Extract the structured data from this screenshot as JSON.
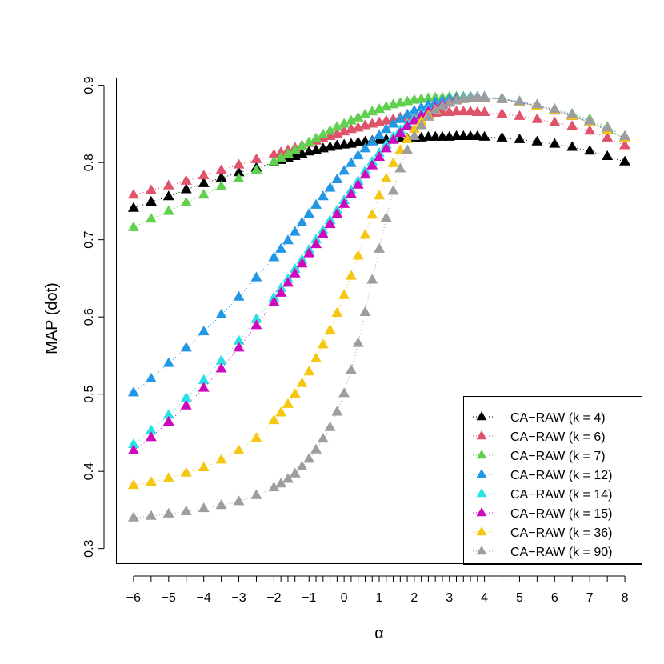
{
  "chart_data": {
    "type": "line",
    "title": "",
    "xlabel": "α",
    "ylabel": "MAP (dot)",
    "xlim": [
      -6.5,
      8.5
    ],
    "ylim": [
      0.28,
      0.91
    ],
    "grid": false,
    "legend_position": "bottom-right",
    "marker": "filled-triangle",
    "line_style": "dotted",
    "x_ticks": [
      -6,
      -5,
      -4,
      -3,
      -2,
      -1,
      0,
      1,
      2,
      3,
      4,
      5,
      6,
      7,
      8
    ],
    "x_tick_labels": [
      "−6",
      "−5",
      "−4",
      "−3",
      "−2",
      "−1",
      "0",
      "1",
      "2",
      "3",
      "4",
      "5",
      "6",
      "7",
      "8"
    ],
    "y_ticks": [
      0.3,
      0.4,
      0.5,
      0.6,
      0.7,
      0.8,
      0.9
    ],
    "y_tick_labels": [
      "0.3",
      "0.4",
      "0.5",
      "0.6",
      "0.7",
      "0.8",
      "0.9"
    ],
    "x": [
      -6,
      -5.5,
      -5,
      -4.5,
      -4,
      -3.5,
      -3,
      -2.5,
      -2,
      -1.8,
      -1.6,
      -1.4,
      -1.2,
      -1,
      -0.8,
      -0.6,
      -0.4,
      -0.2,
      0,
      0.2,
      0.4,
      0.6,
      0.8,
      1,
      1.2,
      1.4,
      1.6,
      1.8,
      2,
      2.2,
      2.4,
      2.6,
      2.8,
      3,
      3.2,
      3.4,
      3.6,
      3.8,
      4,
      4.5,
      5,
      5.5,
      6,
      6.5,
      7,
      7.5,
      8
    ],
    "series": [
      {
        "name": "CA−RAW (k = 4)",
        "color": "#000000",
        "values": [
          0.741,
          0.749,
          0.756,
          0.765,
          0.773,
          0.78,
          0.787,
          0.793,
          0.8,
          0.803,
          0.806,
          0.808,
          0.811,
          0.814,
          0.816,
          0.818,
          0.82,
          0.822,
          0.823,
          0.824,
          0.826,
          0.827,
          0.828,
          0.829,
          0.83,
          0.83,
          0.831,
          0.831,
          0.832,
          0.832,
          0.833,
          0.833,
          0.833,
          0.833,
          0.834,
          0.834,
          0.834,
          0.834,
          0.833,
          0.832,
          0.83,
          0.827,
          0.824,
          0.82,
          0.815,
          0.808,
          0.801
        ]
      },
      {
        "name": "CA−RAW (k = 6)",
        "color": "#DF536B",
        "values": [
          0.758,
          0.764,
          0.77,
          0.776,
          0.783,
          0.79,
          0.797,
          0.804,
          0.81,
          0.813,
          0.816,
          0.819,
          0.822,
          0.825,
          0.828,
          0.831,
          0.834,
          0.837,
          0.84,
          0.843,
          0.845,
          0.848,
          0.85,
          0.852,
          0.854,
          0.856,
          0.858,
          0.859,
          0.86,
          0.862,
          0.863,
          0.864,
          0.865,
          0.865,
          0.866,
          0.866,
          0.866,
          0.865,
          0.865,
          0.863,
          0.86,
          0.856,
          0.852,
          0.847,
          0.841,
          0.832,
          0.822
        ]
      },
      {
        "name": "CA−RAW (k = 7)",
        "color": "#61D04F",
        "values": [
          0.716,
          0.727,
          0.737,
          0.748,
          0.758,
          0.769,
          0.779,
          0.79,
          0.801,
          0.806,
          0.811,
          0.816,
          0.821,
          0.826,
          0.831,
          0.836,
          0.841,
          0.846,
          0.85,
          0.854,
          0.858,
          0.862,
          0.866,
          0.869,
          0.872,
          0.875,
          0.877,
          0.879,
          0.881,
          0.882,
          0.883,
          0.884,
          0.884,
          0.885,
          0.885,
          0.885,
          0.885,
          0.884,
          0.884,
          0.882,
          0.878,
          0.874,
          0.869,
          0.863,
          0.856,
          0.846,
          0.834
        ]
      },
      {
        "name": "CA−RAW (k = 12)",
        "color": "#2297E6",
        "values": [
          0.502,
          0.52,
          0.54,
          0.56,
          0.581,
          0.603,
          0.626,
          0.651,
          0.677,
          0.688,
          0.699,
          0.71,
          0.722,
          0.733,
          0.745,
          0.756,
          0.767,
          0.778,
          0.789,
          0.799,
          0.809,
          0.818,
          0.827,
          0.835,
          0.843,
          0.85,
          0.856,
          0.862,
          0.867,
          0.871,
          0.875,
          0.878,
          0.88,
          0.882,
          0.883,
          0.884,
          0.885,
          0.885,
          0.885,
          0.883,
          0.879,
          0.874,
          0.868,
          0.861,
          0.853,
          0.843,
          0.832
        ]
      },
      {
        "name": "CA−RAW (k = 14)",
        "color": "#28E2E5",
        "values": [
          0.435,
          0.453,
          0.473,
          0.495,
          0.518,
          0.543,
          0.569,
          0.597,
          0.625,
          0.637,
          0.649,
          0.662,
          0.674,
          0.687,
          0.7,
          0.712,
          0.725,
          0.738,
          0.751,
          0.764,
          0.776,
          0.789,
          0.801,
          0.812,
          0.823,
          0.833,
          0.842,
          0.85,
          0.857,
          0.863,
          0.868,
          0.872,
          0.876,
          0.879,
          0.881,
          0.883,
          0.884,
          0.884,
          0.884,
          0.882,
          0.878,
          0.873,
          0.867,
          0.86,
          0.852,
          0.842,
          0.831
        ]
      },
      {
        "name": "CA−RAW (k = 15)",
        "color": "#CD0BBC",
        "values": [
          0.427,
          0.444,
          0.464,
          0.485,
          0.508,
          0.533,
          0.56,
          0.589,
          0.619,
          0.631,
          0.644,
          0.656,
          0.669,
          0.682,
          0.694,
          0.707,
          0.72,
          0.733,
          0.746,
          0.759,
          0.771,
          0.784,
          0.796,
          0.807,
          0.818,
          0.829,
          0.838,
          0.847,
          0.854,
          0.861,
          0.866,
          0.871,
          0.875,
          0.878,
          0.881,
          0.882,
          0.883,
          0.884,
          0.884,
          0.882,
          0.878,
          0.873,
          0.867,
          0.86,
          0.852,
          0.842,
          0.831
        ]
      },
      {
        "name": "CA−RAW (k = 36)",
        "color": "#F5C710",
        "values": [
          0.382,
          0.386,
          0.391,
          0.398,
          0.405,
          0.415,
          0.427,
          0.443,
          0.466,
          0.476,
          0.487,
          0.5,
          0.514,
          0.529,
          0.546,
          0.564,
          0.583,
          0.605,
          0.628,
          0.653,
          0.679,
          0.706,
          0.732,
          0.757,
          0.779,
          0.799,
          0.816,
          0.83,
          0.843,
          0.853,
          0.861,
          0.868,
          0.873,
          0.877,
          0.88,
          0.882,
          0.883,
          0.884,
          0.884,
          0.882,
          0.878,
          0.873,
          0.867,
          0.86,
          0.852,
          0.842,
          0.831
        ]
      },
      {
        "name": "CA−RAW (k = 90)",
        "color": "#9E9E9E",
        "values": [
          0.34,
          0.342,
          0.345,
          0.348,
          0.352,
          0.356,
          0.361,
          0.369,
          0.379,
          0.384,
          0.39,
          0.397,
          0.406,
          0.416,
          0.428,
          0.442,
          0.457,
          0.477,
          0.501,
          0.531,
          0.566,
          0.606,
          0.648,
          0.688,
          0.728,
          0.763,
          0.792,
          0.816,
          0.834,
          0.848,
          0.859,
          0.867,
          0.873,
          0.877,
          0.88,
          0.882,
          0.883,
          0.884,
          0.884,
          0.882,
          0.879,
          0.875,
          0.869,
          0.862,
          0.854,
          0.845,
          0.834
        ]
      }
    ]
  }
}
